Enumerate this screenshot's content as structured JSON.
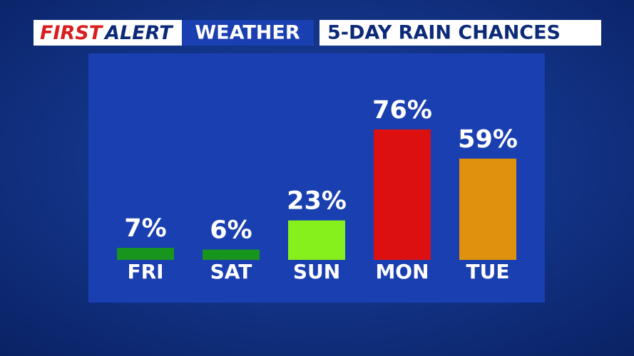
{
  "header": {
    "brand_first": "FIRST",
    "brand_second": "ALERT",
    "section": "WEATHER"
  },
  "chart_data": {
    "type": "bar",
    "title": "5-DAY RAIN CHANCES",
    "categories": [
      "FRI",
      "SAT",
      "SUN",
      "MON",
      "TUE"
    ],
    "values": [
      7,
      6,
      23,
      76,
      59
    ],
    "value_labels": [
      "7%",
      "6%",
      "23%",
      "76%",
      "59%"
    ],
    "colors": [
      "#17951c",
      "#17951c",
      "#86f01c",
      "#dc1010",
      "#e0920f"
    ]
  }
}
